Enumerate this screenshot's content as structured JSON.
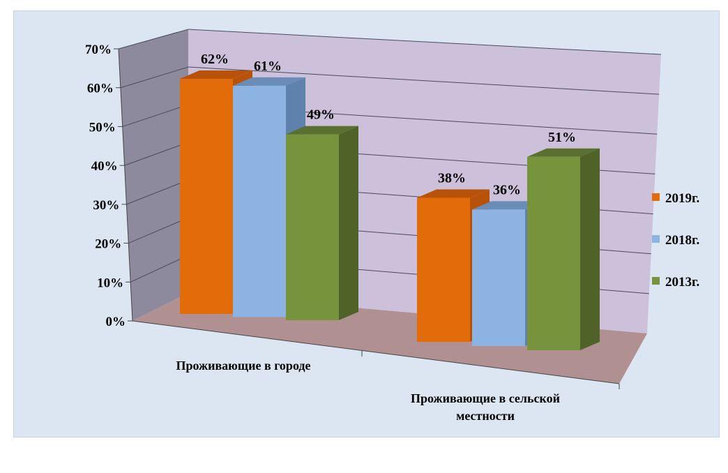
{
  "chart_data": {
    "type": "bar",
    "categories": [
      "Проживающие в городе",
      "Проживающие в сельской местности"
    ],
    "category_lines": [
      [
        "Проживающие в городе"
      ],
      [
        "Проживающие в сельской",
        "местности"
      ]
    ],
    "series": [
      {
        "name": "2019г.",
        "values": [
          62,
          38
        ],
        "labels": [
          "62%",
          "38%"
        ],
        "color": "#e36c0a",
        "top_color": "#b85209",
        "side_color": "#b85209"
      },
      {
        "name": "2018г.",
        "values": [
          61,
          36
        ],
        "labels": [
          "61%",
          "36%"
        ],
        "color": "#8db3e2",
        "top_color": "#6a8db8",
        "side_color": "#5f82ad"
      },
      {
        "name": "2013г.",
        "values": [
          49,
          51
        ],
        "labels": [
          "49%",
          "51%"
        ],
        "color": "#77933c",
        "top_color": "#5a7030",
        "side_color": "#4f6228"
      }
    ],
    "yticks": [
      "0%",
      "10%",
      "20%",
      "30%",
      "40%",
      "50%",
      "60%",
      "70%"
    ],
    "ylim": [
      0,
      70
    ],
    "legend_position": "right",
    "grid": true
  },
  "colors": {
    "background": "#dce6f2",
    "back_wall": "#ccc0da",
    "side_wall": "#8c8a9c",
    "floor": "#b09090",
    "gridline": "#4a4a5a"
  }
}
